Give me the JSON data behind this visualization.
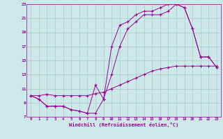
{
  "title": "",
  "xlabel": "Windchill (Refroidissement éolien,°C)",
  "ylabel": "",
  "bg_color": "#cce8e8",
  "line_color": "#990099",
  "grid_color": "#aacccc",
  "xlim": [
    -0.5,
    23.5
  ],
  "ylim": [
    7,
    23
  ],
  "yticks": [
    7,
    9,
    11,
    13,
    15,
    17,
    19,
    21,
    23
  ],
  "xticks": [
    0,
    1,
    2,
    3,
    4,
    5,
    6,
    7,
    8,
    9,
    10,
    11,
    12,
    13,
    14,
    15,
    16,
    17,
    18,
    19,
    20,
    21,
    22,
    23
  ],
  "line1_x": [
    0,
    1,
    2,
    3,
    4,
    5,
    6,
    7,
    8,
    9,
    10,
    11,
    12,
    13,
    14,
    15,
    16,
    17,
    18,
    19,
    20,
    21,
    22,
    23
  ],
  "line1_y": [
    10.0,
    9.5,
    8.5,
    8.5,
    8.5,
    8.0,
    7.8,
    7.5,
    7.5,
    9.5,
    13.0,
    17.0,
    19.5,
    20.5,
    21.5,
    21.5,
    21.5,
    22.0,
    23.0,
    22.5,
    19.5,
    15.5,
    15.5,
    14.0
  ],
  "line2_x": [
    0,
    1,
    2,
    3,
    4,
    5,
    6,
    7,
    8,
    9,
    10,
    11,
    12,
    13,
    14,
    15,
    16,
    17,
    18,
    19,
    20,
    21,
    22,
    23
  ],
  "line2_y": [
    10.0,
    9.5,
    8.5,
    8.5,
    8.5,
    8.0,
    7.8,
    7.5,
    11.5,
    9.5,
    17.0,
    20.0,
    20.5,
    21.5,
    22.0,
    22.0,
    22.5,
    23.0,
    23.0,
    22.5,
    19.5,
    15.5,
    15.5,
    14.0
  ],
  "line3_x": [
    0,
    1,
    2,
    3,
    4,
    5,
    6,
    7,
    8,
    9,
    10,
    11,
    12,
    13,
    14,
    15,
    16,
    17,
    18,
    19,
    20,
    21,
    22,
    23
  ],
  "line3_y": [
    10.0,
    10.0,
    10.2,
    10.0,
    10.0,
    10.0,
    10.0,
    10.0,
    10.3,
    10.5,
    11.0,
    11.5,
    12.0,
    12.5,
    13.0,
    13.5,
    13.8,
    14.0,
    14.2,
    14.2,
    14.2,
    14.2,
    14.2,
    14.2
  ]
}
